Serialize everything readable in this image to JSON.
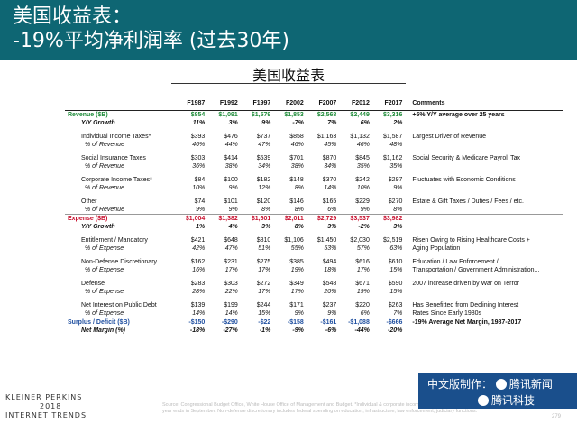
{
  "header": {
    "title_line1": "美国收益表：",
    "title_line2": "-19%平均净利润率 (过去30年)",
    "subtitle": "美国收益表"
  },
  "table": {
    "columns": [
      "",
      "F1987",
      "F1992",
      "F1997",
      "F2002",
      "F2007",
      "F2012",
      "F2017",
      "Comments"
    ],
    "rows": [
      {
        "label": "Revenue ($B)",
        "values": [
          "$854",
          "$1,091",
          "$1,579",
          "$1,853",
          "$2,568",
          "$2,449",
          "$3,316"
        ],
        "comment": "+5% Y/Y average over 25 years",
        "style": "green-head"
      },
      {
        "label": "Y/Y Growth",
        "values": [
          "11%",
          "3%",
          "9%",
          "-7%",
          "7%",
          "6%",
          "2%"
        ],
        "comment": "",
        "style": "growth"
      },
      {
        "label": "",
        "values": [
          "",
          "",
          "",
          "",
          "",
          "",
          ""
        ],
        "comment": "",
        "style": "gap"
      },
      {
        "label": "Individual Income Taxes*",
        "values": [
          "$393",
          "$476",
          "$737",
          "$858",
          "$1,163",
          "$1,132",
          "$1,587"
        ],
        "comment": "Largest Driver of Revenue",
        "style": "item"
      },
      {
        "label": "% of Revenue",
        "values": [
          "46%",
          "44%",
          "47%",
          "46%",
          "45%",
          "46%",
          "48%"
        ],
        "comment": "",
        "style": "pct"
      },
      {
        "label": "",
        "values": [
          "",
          "",
          "",
          "",
          "",
          "",
          ""
        ],
        "comment": "",
        "style": "gap"
      },
      {
        "label": "Social Insurance Taxes",
        "values": [
          "$303",
          "$414",
          "$539",
          "$701",
          "$870",
          "$845",
          "$1,162"
        ],
        "comment": "Social Security & Medicare Payroll Tax",
        "style": "item"
      },
      {
        "label": "% of Revenue",
        "values": [
          "36%",
          "38%",
          "34%",
          "38%",
          "34%",
          "35%",
          "35%"
        ],
        "comment": "",
        "style": "pct"
      },
      {
        "label": "",
        "values": [
          "",
          "",
          "",
          "",
          "",
          "",
          ""
        ],
        "comment": "",
        "style": "gap"
      },
      {
        "label": "Corporate Income Taxes*",
        "values": [
          "$84",
          "$100",
          "$182",
          "$148",
          "$370",
          "$242",
          "$297"
        ],
        "comment": "Fluctuates with Economic Conditions",
        "style": "item"
      },
      {
        "label": "% of Revenue",
        "values": [
          "10%",
          "9%",
          "12%",
          "8%",
          "14%",
          "10%",
          "9%"
        ],
        "comment": "",
        "style": "pct"
      },
      {
        "label": "",
        "values": [
          "",
          "",
          "",
          "",
          "",
          "",
          ""
        ],
        "comment": "",
        "style": "gap"
      },
      {
        "label": "Other",
        "values": [
          "$74",
          "$101",
          "$120",
          "$146",
          "$165",
          "$229",
          "$270"
        ],
        "comment": "Estate & Gift Taxes / Duties / Fees / etc.",
        "style": "item"
      },
      {
        "label": "% of Revenue",
        "values": [
          "9%",
          "9%",
          "8%",
          "8%",
          "6%",
          "9%",
          "8%"
        ],
        "comment": "",
        "style": "pct"
      },
      {
        "label": "Expense ($B)",
        "values": [
          "$1,004",
          "$1,382",
          "$1,601",
          "$2,011",
          "$2,729",
          "$3,537",
          "$3,982"
        ],
        "comment": "",
        "style": "red-head"
      },
      {
        "label": "Y/Y Growth",
        "values": [
          "1%",
          "4%",
          "3%",
          "8%",
          "3%",
          "-2%",
          "3%"
        ],
        "comment": "",
        "style": "growth"
      },
      {
        "label": "",
        "values": [
          "",
          "",
          "",
          "",
          "",
          "",
          ""
        ],
        "comment": "",
        "style": "gap"
      },
      {
        "label": "Entitlement / Mandatory",
        "values": [
          "$421",
          "$648",
          "$810",
          "$1,106",
          "$1,450",
          "$2,030",
          "$2,519"
        ],
        "comment": "Risen Owing to Rising Healthcare Costs +",
        "style": "item"
      },
      {
        "label": "% of Expense",
        "values": [
          "42%",
          "47%",
          "51%",
          "55%",
          "53%",
          "57%",
          "63%"
        ],
        "comment": "Aging Population",
        "style": "pct"
      },
      {
        "label": "",
        "values": [
          "",
          "",
          "",
          "",
          "",
          "",
          ""
        ],
        "comment": "",
        "style": "gap"
      },
      {
        "label": "Non-Defense Discretionary",
        "values": [
          "$162",
          "$231",
          "$275",
          "$385",
          "$494",
          "$616",
          "$610"
        ],
        "comment": "Education / Law Enforcement /",
        "style": "item"
      },
      {
        "label": "% of Expense",
        "values": [
          "16%",
          "17%",
          "17%",
          "19%",
          "18%",
          "17%",
          "15%"
        ],
        "comment": "Transportation / Government Administration...",
        "style": "pct"
      },
      {
        "label": "",
        "values": [
          "",
          "",
          "",
          "",
          "",
          "",
          ""
        ],
        "comment": "",
        "style": "gap"
      },
      {
        "label": "Defense",
        "values": [
          "$283",
          "$303",
          "$272",
          "$349",
          "$548",
          "$671",
          "$590"
        ],
        "comment": "2007 increase driven by War on Terror",
        "style": "item"
      },
      {
        "label": "% of Expense",
        "values": [
          "28%",
          "22%",
          "17%",
          "17%",
          "20%",
          "19%",
          "15%"
        ],
        "comment": "",
        "style": "pct"
      },
      {
        "label": "",
        "values": [
          "",
          "",
          "",
          "",
          "",
          "",
          ""
        ],
        "comment": "",
        "style": "gap"
      },
      {
        "label": "Net Interest on Public Debt",
        "values": [
          "$139",
          "$199",
          "$244",
          "$171",
          "$237",
          "$220",
          "$263"
        ],
        "comment": "Has Benefitted from Declining Interest",
        "style": "item"
      },
      {
        "label": "% of Expense",
        "values": [
          "14%",
          "14%",
          "15%",
          "9%",
          "9%",
          "6%",
          "7%"
        ],
        "comment": "Rates Since Early 1980s",
        "style": "pct"
      },
      {
        "label": "Surplus / Deficit ($B)",
        "values": [
          "-$150",
          "-$290",
          "-$22",
          "-$158",
          "-$161",
          "-$1,088",
          "-$666"
        ],
        "comment": "-19% Average Net Margin, 1987-2017",
        "style": "blue-head"
      },
      {
        "label": "Net Margin (%)",
        "values": [
          "-18%",
          "-27%",
          "-1%",
          "-9%",
          "-6%",
          "-44%",
          "-20%"
        ],
        "comment": "",
        "style": "growth"
      }
    ]
  },
  "footer": {
    "brand_line1": "KLEINER PERKINS",
    "brand_line2": "2018",
    "brand_line3": "INTERNET TRENDS",
    "source": "Source: Congressional Budget Office, White House Office of Management and Budget. *Individual & corporate income taxes include capital gains taxes. Note: USA federal fiscal year ends in September. Non-defense discretionary includes federal spending on education, infrastructure, law enforcement, judiciary functions.",
    "page_number": "279",
    "cn_line1": "中文版制作：",
    "cn_brand1": "腾讯新闻",
    "cn_brand2": "腾讯科技"
  },
  "colors": {
    "banner": "#0e6673",
    "revenue": "#1f8c3a",
    "expense": "#c8102e",
    "surplus": "#1f4fa0",
    "cn_banner": "#1a4f8c"
  }
}
